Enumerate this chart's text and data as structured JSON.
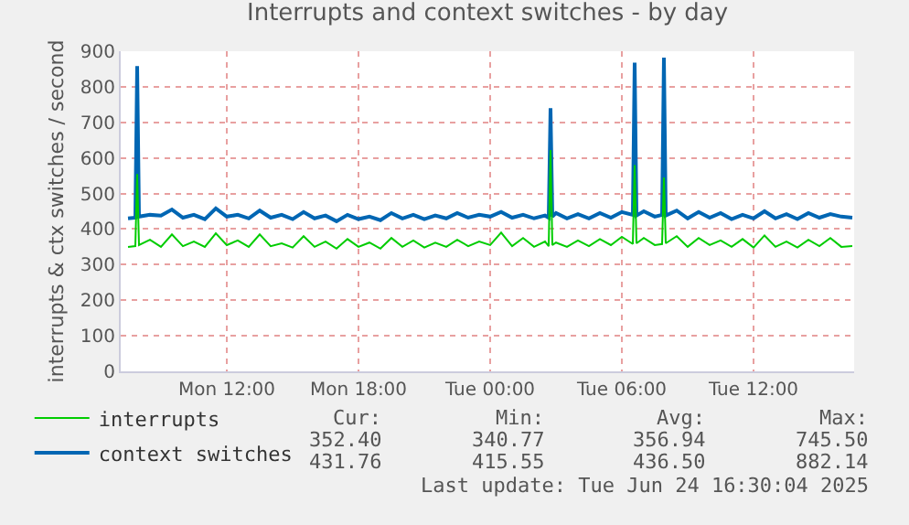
{
  "chart_data": {
    "type": "line",
    "title": "Interrupts and context switches - by day",
    "ylabel": "interrupts & ctx switches / second",
    "x": [
      "2025-06-23T07:30",
      "2025-06-23T07:50",
      "2025-06-23T07:55",
      "2025-06-23T08:00",
      "2025-06-23T08:30",
      "2025-06-23T09:00",
      "2025-06-23T09:30",
      "2025-06-23T10:00",
      "2025-06-23T10:30",
      "2025-06-23T11:00",
      "2025-06-23T11:30",
      "2025-06-23T12:00",
      "2025-06-23T12:30",
      "2025-06-23T13:00",
      "2025-06-23T13:30",
      "2025-06-23T14:00",
      "2025-06-23T14:30",
      "2025-06-23T15:00",
      "2025-06-23T15:30",
      "2025-06-23T16:00",
      "2025-06-23T16:30",
      "2025-06-23T17:00",
      "2025-06-23T17:30",
      "2025-06-23T18:00",
      "2025-06-23T18:30",
      "2025-06-23T19:00",
      "2025-06-23T19:30",
      "2025-06-23T20:00",
      "2025-06-23T20:30",
      "2025-06-23T21:00",
      "2025-06-23T21:30",
      "2025-06-23T22:00",
      "2025-06-23T22:30",
      "2025-06-23T23:00",
      "2025-06-23T23:30",
      "2025-06-24T00:00",
      "2025-06-24T00:30",
      "2025-06-24T01:00",
      "2025-06-24T01:30",
      "2025-06-24T02:00",
      "2025-06-24T02:30",
      "2025-06-24T02:40",
      "2025-06-24T02:45",
      "2025-06-24T02:50",
      "2025-06-24T03:00",
      "2025-06-24T03:30",
      "2025-06-24T04:00",
      "2025-06-24T04:30",
      "2025-06-24T05:00",
      "2025-06-24T05:30",
      "2025-06-24T06:00",
      "2025-06-24T06:30",
      "2025-06-24T06:35",
      "2025-06-24T06:40",
      "2025-06-24T07:00",
      "2025-06-24T07:30",
      "2025-06-24T07:50",
      "2025-06-24T07:55",
      "2025-06-24T08:00",
      "2025-06-24T08:30",
      "2025-06-24T09:00",
      "2025-06-24T09:30",
      "2025-06-24T10:00",
      "2025-06-24T10:30",
      "2025-06-24T11:00",
      "2025-06-24T11:30",
      "2025-06-24T12:00",
      "2025-06-24T12:30",
      "2025-06-24T13:00",
      "2025-06-24T13:30",
      "2025-06-24T14:00",
      "2025-06-24T14:30",
      "2025-06-24T15:00",
      "2025-06-24T15:30",
      "2025-06-24T16:00",
      "2025-06-24T16:30"
    ],
    "series": [
      {
        "name": "interrupts",
        "color": "#00cc00",
        "values": [
          350,
          352,
          555,
          355,
          370,
          350,
          385,
          352,
          365,
          350,
          388,
          355,
          368,
          350,
          385,
          352,
          360,
          348,
          380,
          350,
          365,
          345,
          372,
          350,
          362,
          345,
          375,
          350,
          368,
          348,
          362,
          350,
          370,
          352,
          365,
          355,
          390,
          352,
          375,
          350,
          365,
          352,
          622,
          355,
          362,
          350,
          368,
          352,
          372,
          355,
          378,
          358,
          580,
          360,
          375,
          355,
          358,
          545,
          360,
          380,
          350,
          375,
          355,
          368,
          350,
          372,
          348,
          382,
          350,
          365,
          348,
          370,
          352,
          375,
          350,
          352
        ]
      },
      {
        "name": "context switches",
        "color": "#0066b3",
        "values": [
          430,
          432,
          858,
          435,
          440,
          438,
          455,
          432,
          440,
          428,
          458,
          435,
          440,
          430,
          452,
          432,
          440,
          428,
          448,
          430,
          438,
          422,
          440,
          428,
          435,
          425,
          445,
          430,
          440,
          428,
          438,
          430,
          445,
          432,
          440,
          435,
          448,
          432,
          440,
          430,
          438,
          432,
          740,
          435,
          445,
          430,
          442,
          430,
          445,
          432,
          448,
          440,
          868,
          438,
          450,
          435,
          440,
          882,
          438,
          452,
          430,
          448,
          432,
          445,
          428,
          440,
          430,
          450,
          430,
          442,
          428,
          445,
          432,
          442,
          435,
          432
        ]
      }
    ],
    "xlim": [
      "2025-06-23T07:10",
      "2025-06-24T16:35"
    ],
    "xticks": [
      {
        "value": "2025-06-23T12:00",
        "label": "Mon 12:00"
      },
      {
        "value": "2025-06-23T18:00",
        "label": "Mon 18:00"
      },
      {
        "value": "2025-06-24T00:00",
        "label": "Tue 00:00"
      },
      {
        "value": "2025-06-24T06:00",
        "label": "Tue 06:00"
      },
      {
        "value": "2025-06-24T12:00",
        "label": "Tue 12:00"
      }
    ],
    "ylim": [
      0,
      900
    ],
    "yticks": [
      0,
      100,
      200,
      300,
      400,
      500,
      600,
      700,
      800,
      900
    ],
    "grid": true,
    "legend": "bottom left",
    "marker": "none",
    "line_style": "solid",
    "annotations": [
      "Cur:",
      "Min:",
      "Avg:",
      "Max:",
      "352.40",
      "340.77",
      "356.94",
      "745.50",
      "431.76",
      "415.55",
      "436.50",
      "882.14",
      "Last update: Tue Jun 24 16:30:04 2025"
    ]
  }
}
